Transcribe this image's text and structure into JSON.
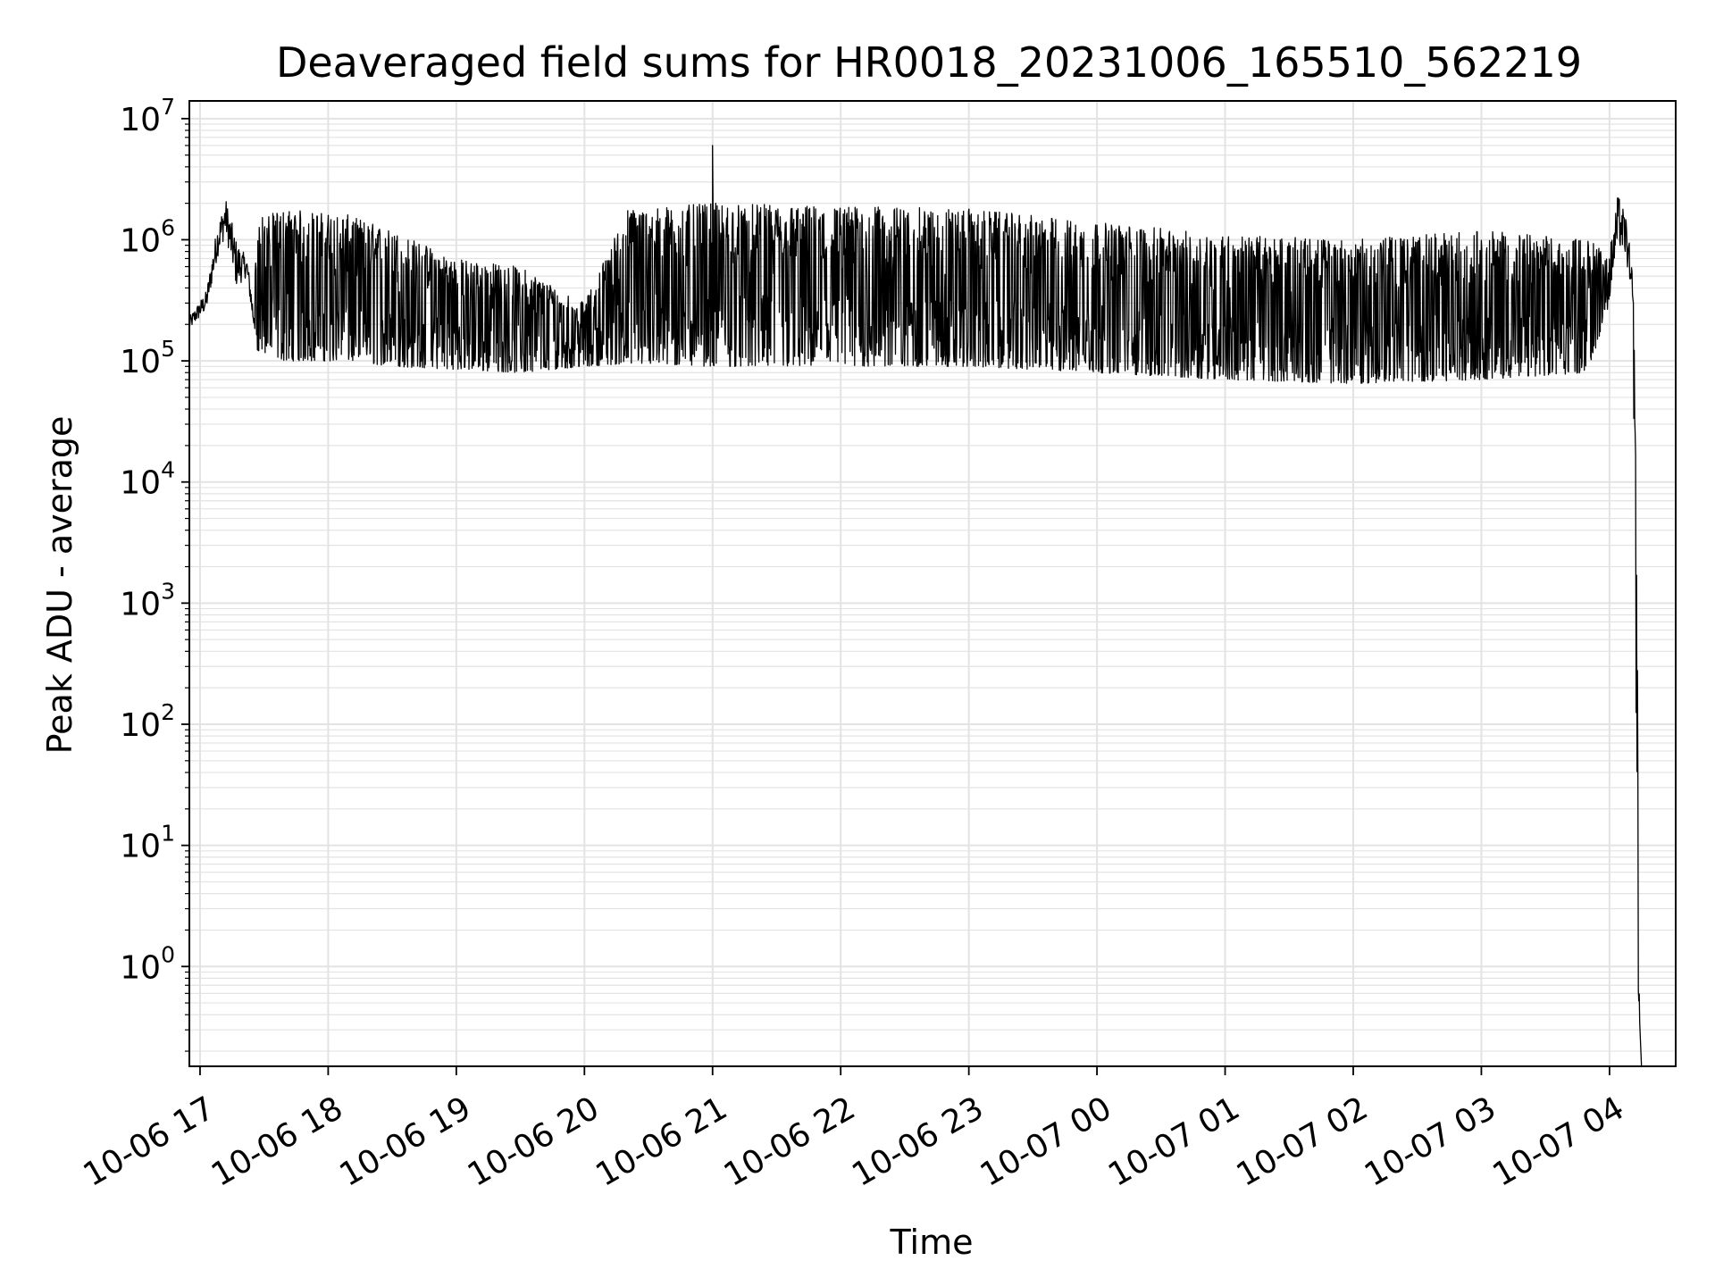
{
  "chart_data": {
    "type": "line",
    "title": "Deaveraged field sums for HR0018_20231006_165510_562219",
    "xlabel": "Time",
    "ylabel": "Peak ADU - average",
    "yscale": "log",
    "ylim": [
      0.15,
      14000000
    ],
    "xlim": [
      "2023-10-06 16:55",
      "2023-10-07 04:31"
    ],
    "grid": true,
    "line_color": "#000000",
    "grid_color": "#e3e3e3",
    "x_ticks": [
      {
        "t": "2023-10-06 17:00",
        "label": "10-06 17"
      },
      {
        "t": "2023-10-06 18:00",
        "label": "10-06 18"
      },
      {
        "t": "2023-10-06 19:00",
        "label": "10-06 19"
      },
      {
        "t": "2023-10-06 20:00",
        "label": "10-06 20"
      },
      {
        "t": "2023-10-06 21:00",
        "label": "10-06 21"
      },
      {
        "t": "2023-10-06 22:00",
        "label": "10-06 22"
      },
      {
        "t": "2023-10-06 23:00",
        "label": "10-06 23"
      },
      {
        "t": "2023-10-07 00:00",
        "label": "10-07 00"
      },
      {
        "t": "2023-10-07 01:00",
        "label": "10-07 01"
      },
      {
        "t": "2023-10-07 02:00",
        "label": "10-07 02"
      },
      {
        "t": "2023-10-07 03:00",
        "label": "10-07 03"
      },
      {
        "t": "2023-10-07 04:00",
        "label": "10-07 04"
      }
    ],
    "y_ticks": [
      {
        "value": 1,
        "base": "10",
        "exp": "0"
      },
      {
        "value": 10,
        "base": "10",
        "exp": "1"
      },
      {
        "value": 100,
        "base": "10",
        "exp": "2"
      },
      {
        "value": 1000,
        "base": "10",
        "exp": "3"
      },
      {
        "value": 10000,
        "base": "10",
        "exp": "4"
      },
      {
        "value": 100000,
        "base": "10",
        "exp": "5"
      },
      {
        "value": 1000000,
        "base": "10",
        "exp": "6"
      },
      {
        "value": 10000000,
        "base": "10",
        "exp": "7"
      }
    ],
    "envelope": [
      {
        "t": "2023-10-06 16:55",
        "low": 180000,
        "high": 230000
      },
      {
        "t": "2023-10-06 17:03",
        "low": 260000,
        "high": 380000
      },
      {
        "t": "2023-10-06 17:08",
        "low": 700000,
        "high": 1300000
      },
      {
        "t": "2023-10-06 17:12",
        "low": 1100000,
        "high": 2200000
      },
      {
        "t": "2023-10-06 17:17",
        "low": 400000,
        "high": 1000000
      },
      {
        "t": "2023-10-06 17:22",
        "low": 500000,
        "high": 700000
      },
      {
        "t": "2023-10-06 17:25",
        "low": 180000,
        "high": 300000
      },
      {
        "t": "2023-10-06 17:27",
        "low": 120000,
        "high": 1500000
      },
      {
        "t": "2023-10-06 17:40",
        "low": 100000,
        "high": 1800000
      },
      {
        "t": "2023-10-06 18:10",
        "low": 100000,
        "high": 1600000
      },
      {
        "t": "2023-10-06 18:30",
        "low": 90000,
        "high": 1200000
      },
      {
        "t": "2023-10-06 19:00",
        "low": 85000,
        "high": 700000
      },
      {
        "t": "2023-10-06 19:30",
        "low": 80000,
        "high": 600000
      },
      {
        "t": "2023-10-06 20:00",
        "low": 90000,
        "high": 300000
      },
      {
        "t": "2023-10-06 20:20",
        "low": 95000,
        "high": 1800000
      },
      {
        "t": "2023-10-06 21:00",
        "low": 90000,
        "high": 2000000
      },
      {
        "t": "2023-10-06 22:00",
        "low": 90000,
        "high": 1900000
      },
      {
        "t": "2023-10-06 23:00",
        "low": 90000,
        "high": 1800000
      },
      {
        "t": "2023-10-07 00:00",
        "low": 80000,
        "high": 1400000
      },
      {
        "t": "2023-10-07 01:00",
        "low": 70000,
        "high": 1100000
      },
      {
        "t": "2023-10-07 02:00",
        "low": 65000,
        "high": 1000000
      },
      {
        "t": "2023-10-07 03:00",
        "low": 70000,
        "high": 1200000
      },
      {
        "t": "2023-10-07 03:50",
        "low": 80000,
        "high": 1000000
      },
      {
        "t": "2023-10-07 04:00",
        "low": 300000,
        "high": 800000
      },
      {
        "t": "2023-10-07 04:04",
        "low": 900000,
        "high": 2400000
      },
      {
        "t": "2023-10-07 04:08",
        "low": 700000,
        "high": 1500000
      },
      {
        "t": "2023-10-07 04:11",
        "low": 150000,
        "high": 500000
      },
      {
        "t": "2023-10-07 04:12",
        "low": 3000,
        "high": 50000
      },
      {
        "t": "2023-10-07 04:13",
        "low": 1,
        "high": 1000
      },
      {
        "t": "2023-10-07 04:14",
        "low": 0.4,
        "high": 0.4
      },
      {
        "t": "2023-10-07 04:15",
        "low": 0.15,
        "high": 0.15
      }
    ],
    "spikes": [
      {
        "t": "2023-10-06 21:00",
        "value": 6000000
      }
    ]
  }
}
